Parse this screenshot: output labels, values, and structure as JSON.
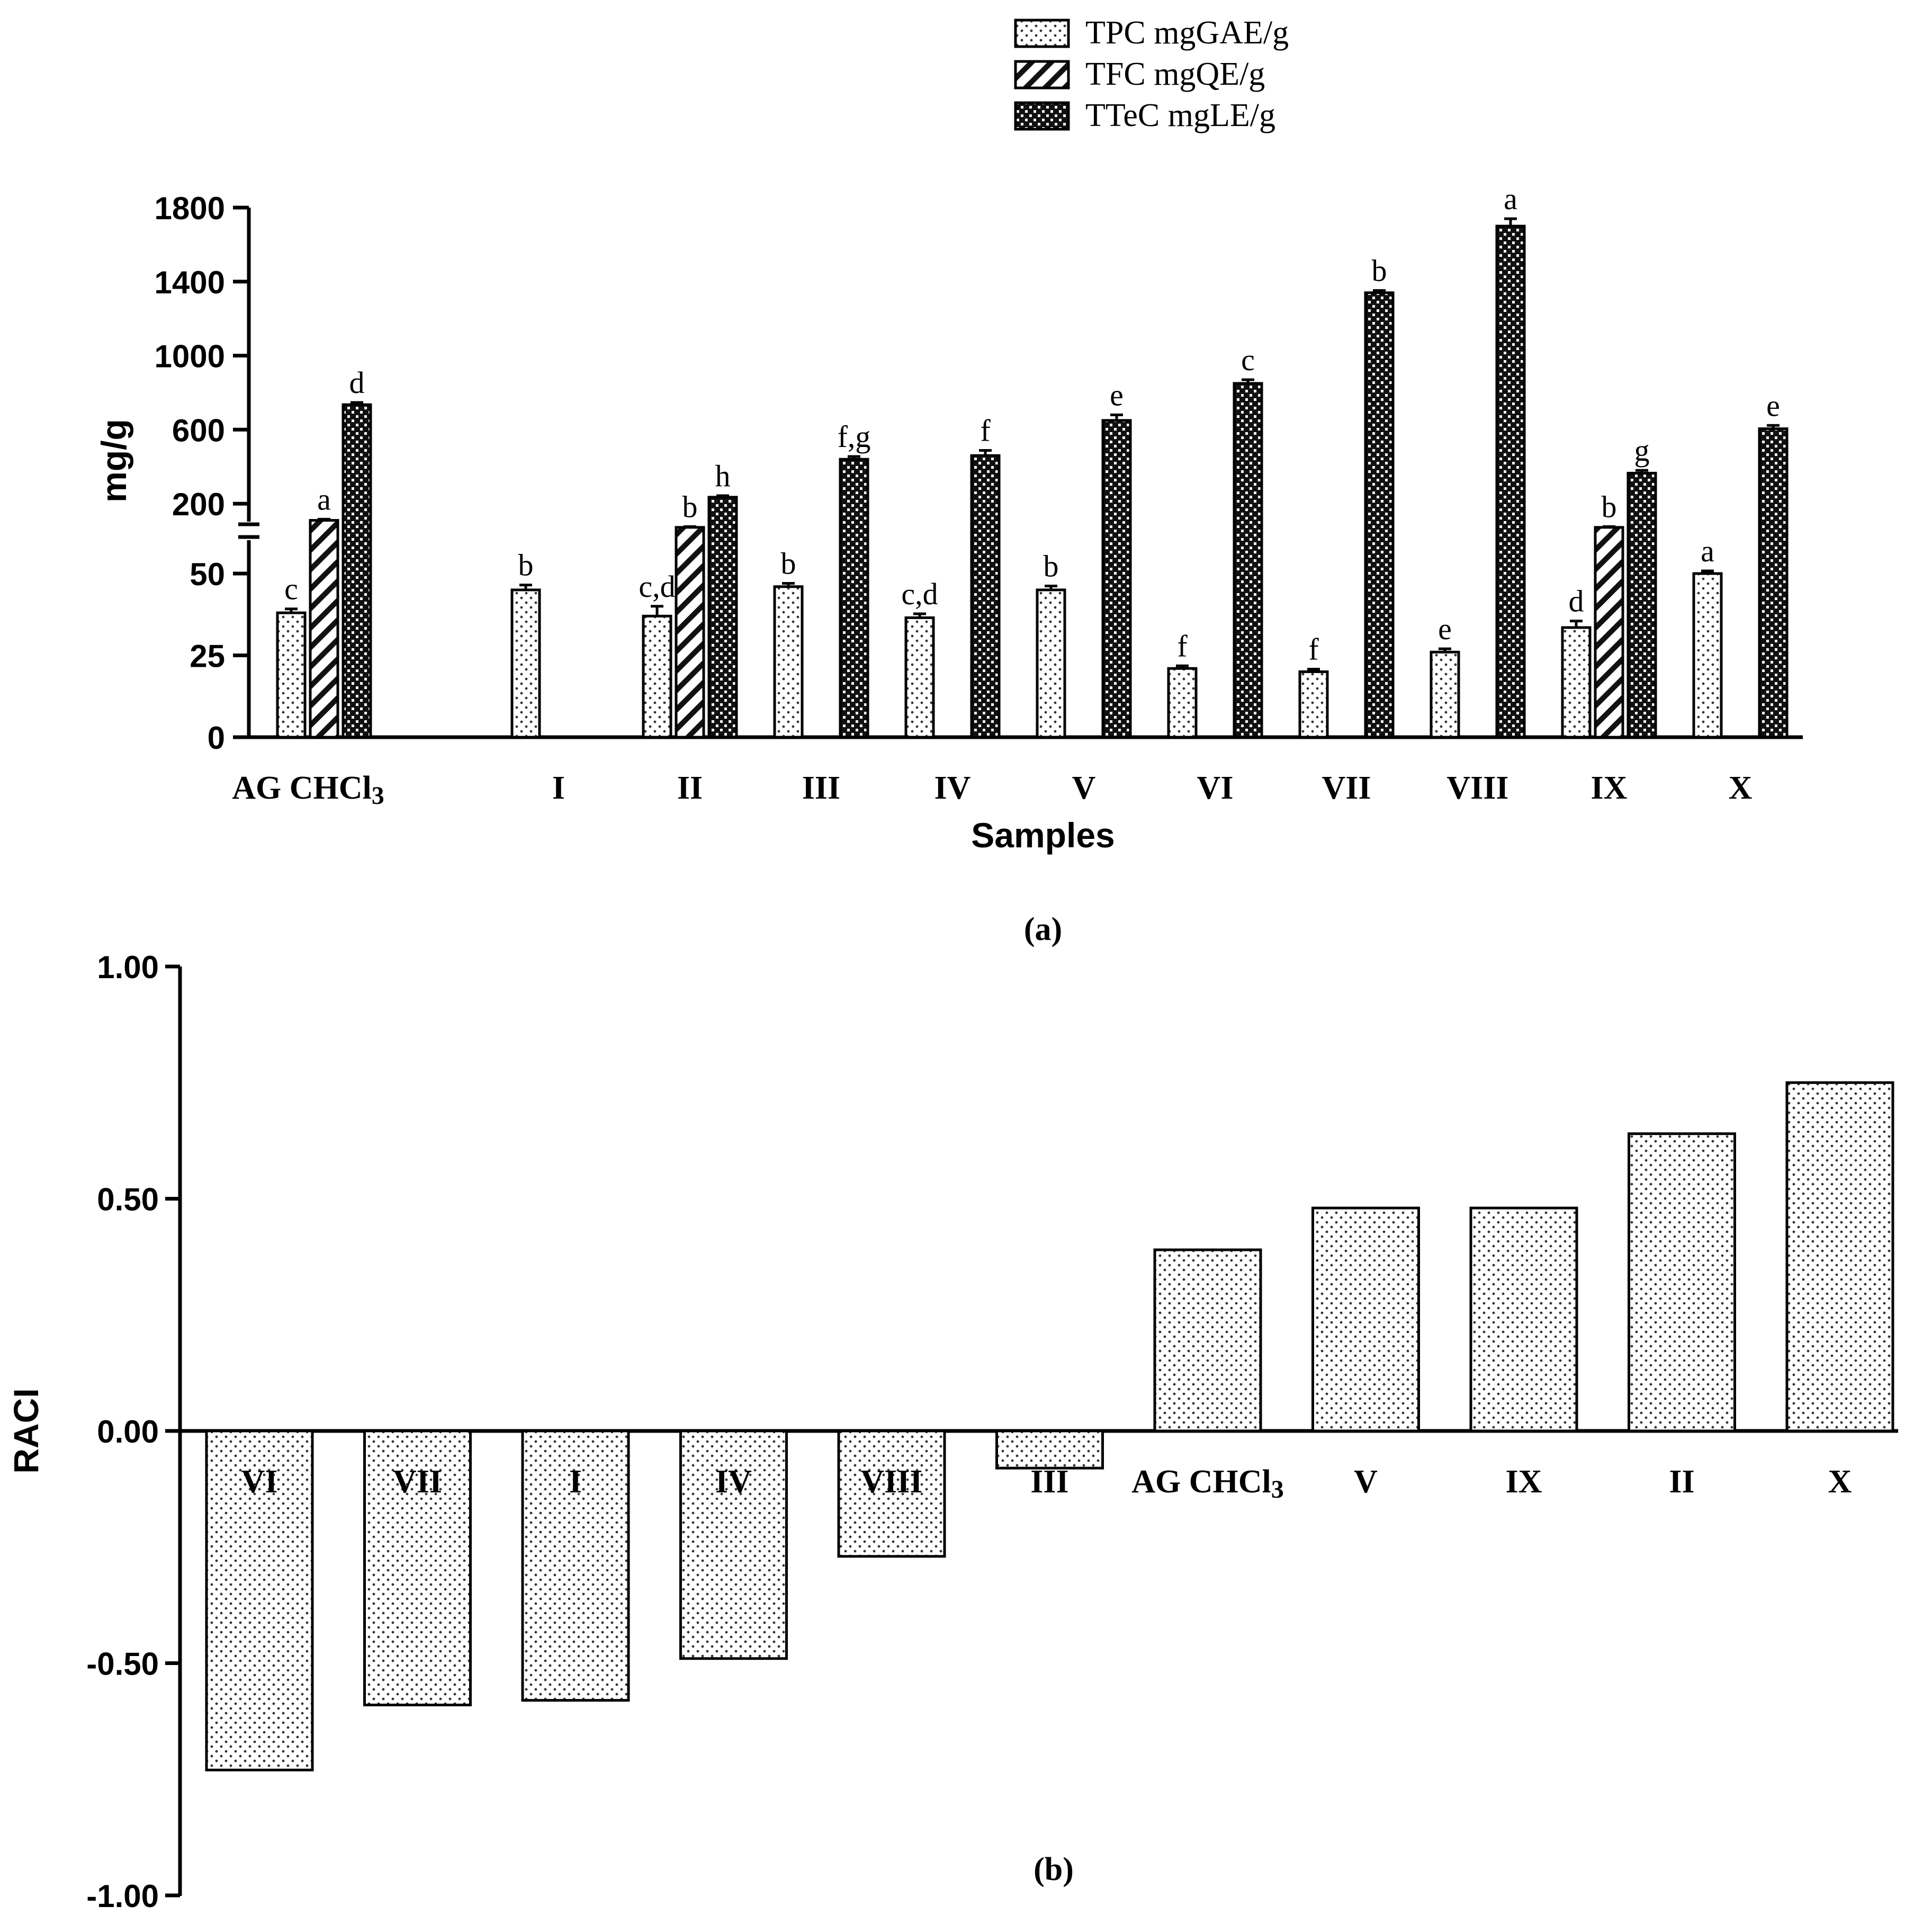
{
  "chart_data": [
    {
      "type": "bar",
      "panel_label": "(a)",
      "xlabel": "Samples",
      "ylabel": "mg/g",
      "y_axis_break": true,
      "ylim_lower": [
        0,
        60
      ],
      "ylim_upper": [
        60,
        1800
      ],
      "yticks_lower": [
        "0",
        "25",
        "50"
      ],
      "yticks_upper": [
        "200",
        "600",
        "1000",
        "1400",
        "1800"
      ],
      "legend_position": "top-right",
      "categories": [
        "AG CHCl3",
        "I",
        "II",
        "III",
        "IV",
        "V",
        "VI",
        "VII",
        "VIII",
        "IX",
        "X"
      ],
      "series": [
        {
          "name": "TPC mgGAE/g",
          "pattern": "dots",
          "values": [
            38,
            45,
            37,
            46,
            36.5,
            45,
            21,
            20,
            26,
            33.5,
            50
          ],
          "errors": [
            1.2,
            1.5,
            3,
            1,
            1.2,
            1.2,
            0.8,
            0.8,
            1,
            2,
            0.8
          ],
          "letters": [
            "c",
            "b",
            "c,d",
            "b",
            "c,d",
            "b",
            "f",
            "f",
            "e",
            "d",
            "a"
          ]
        },
        {
          "name": "TFC mgQE/g",
          "pattern": "diagonal",
          "values": [
            110,
            null,
            72,
            null,
            null,
            null,
            null,
            null,
            null,
            72,
            null
          ],
          "errors": [
            6,
            null,
            4,
            null,
            null,
            null,
            null,
            null,
            null,
            4,
            null
          ],
          "letters": [
            "a",
            "",
            "b",
            "",
            "",
            "",
            "",
            "",
            "",
            "b",
            ""
          ]
        },
        {
          "name": "TTeC mgLE/g",
          "pattern": "checker",
          "values": [
            735,
            null,
            235,
            440,
            460,
            650,
            850,
            1340,
            1700,
            365,
            605
          ],
          "errors": [
            12,
            null,
            8,
            15,
            28,
            30,
            20,
            12,
            40,
            15,
            18
          ],
          "letters": [
            "d",
            "",
            "h",
            "f,g",
            "f",
            "e",
            "c",
            "b",
            "a",
            "g",
            "e"
          ]
        }
      ]
    },
    {
      "type": "bar",
      "panel_label": "(b)",
      "xlabel": "",
      "ylabel": "RACI",
      "ylim": [
        -1.0,
        1.0
      ],
      "yticks": [
        "-1.00",
        "-0.50",
        "0.00",
        "0.50",
        "1.00"
      ],
      "categories": [
        "VI",
        "VII",
        "I",
        "IV",
        "VIII",
        "III",
        "AG CHCl3",
        "V",
        "IX",
        "II",
        "X"
      ],
      "values": [
        -0.73,
        -0.59,
        -0.58,
        -0.49,
        -0.27,
        -0.08,
        0.39,
        0.48,
        0.48,
        0.64,
        0.75
      ]
    }
  ]
}
